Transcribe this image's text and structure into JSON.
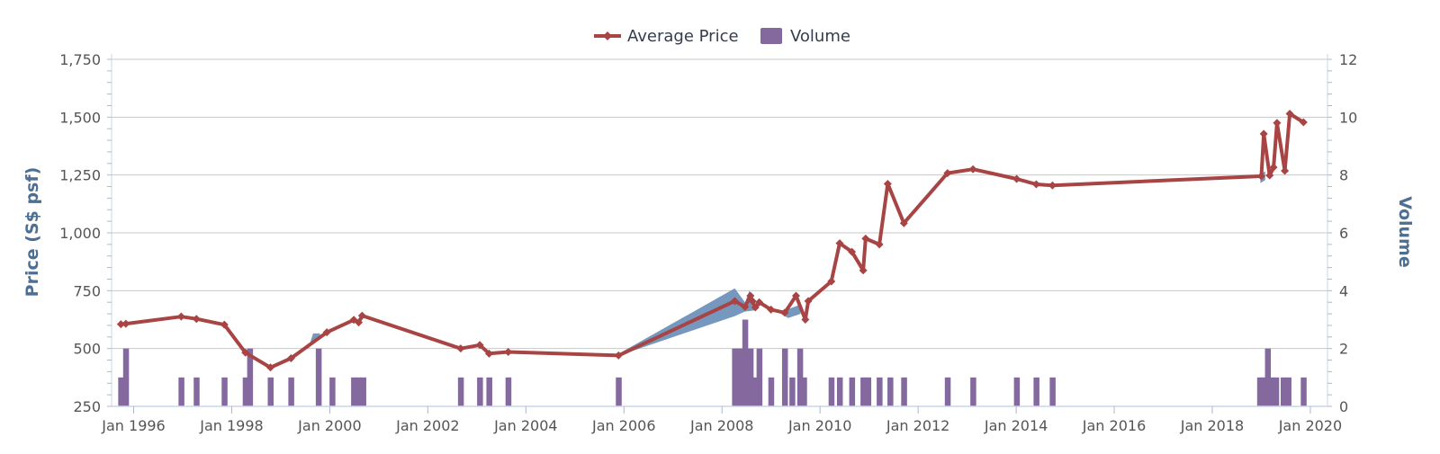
{
  "chart_data": {
    "type": "line",
    "legend": {
      "placement": "top-center",
      "items": [
        {
          "label": "Average Price",
          "color": "#a84444",
          "kind": "line"
        },
        {
          "label": "Volume",
          "color": "#84699e",
          "kind": "bar"
        }
      ]
    },
    "y_left": {
      "label": "Price (S$ psf)",
      "min": 250,
      "max": 1750,
      "ticks": [
        "250",
        "500",
        "750",
        "1,000",
        "1,250",
        "1,500",
        "1,750"
      ]
    },
    "y_right": {
      "label": "Volume",
      "min": 0,
      "max": 12,
      "ticks": [
        "0",
        "2",
        "4",
        "6",
        "8",
        "10",
        "12"
      ]
    },
    "x_axis": {
      "min": 1995.55,
      "max": 2020.35,
      "ticks": [
        {
          "label": "Jan 1996",
          "value": 1996
        },
        {
          "label": "Jan 1998",
          "value": 1998
        },
        {
          "label": "Jan 2000",
          "value": 2000
        },
        {
          "label": "Jan 2002",
          "value": 2002
        },
        {
          "label": "Jan 2004",
          "value": 2004
        },
        {
          "label": "Jan 2006",
          "value": 2006
        },
        {
          "label": "Jan 2008",
          "value": 2008
        },
        {
          "label": "Jan 2010",
          "value": 2010
        },
        {
          "label": "Jan 2012",
          "value": 2012
        },
        {
          "label": "Jan 2014",
          "value": 2014
        },
        {
          "label": "Jan 2016",
          "value": 2016
        },
        {
          "label": "Jan 2018",
          "value": 2018
        },
        {
          "label": "Jan 2020",
          "value": 2020
        }
      ]
    },
    "grid": true,
    "series": [
      {
        "name": "Average Price",
        "color": "#a84444",
        "points": [
          [
            1995.74,
            605
          ],
          [
            1995.84,
            607
          ],
          [
            1996.97,
            638
          ],
          [
            1997.28,
            628
          ],
          [
            1997.85,
            603
          ],
          [
            1998.28,
            482
          ],
          [
            1998.79,
            418
          ],
          [
            1999.21,
            458
          ],
          [
            1999.94,
            570
          ],
          [
            2000.49,
            624
          ],
          [
            2000.59,
            613
          ],
          [
            2000.66,
            642
          ],
          [
            2002.67,
            500
          ],
          [
            2003.06,
            515
          ],
          [
            2003.25,
            478
          ],
          [
            2003.64,
            485
          ],
          [
            2005.89,
            470
          ],
          [
            2008.26,
            705
          ],
          [
            2008.47,
            680
          ],
          [
            2008.58,
            728
          ],
          [
            2008.62,
            705
          ],
          [
            2008.68,
            678
          ],
          [
            2008.76,
            700
          ],
          [
            2009.0,
            668
          ],
          [
            2009.28,
            655
          ],
          [
            2009.51,
            728
          ],
          [
            2009.7,
            625
          ],
          [
            2009.76,
            705
          ],
          [
            2010.23,
            790
          ],
          [
            2010.4,
            955
          ],
          [
            2010.65,
            918
          ],
          [
            2010.88,
            838
          ],
          [
            2010.93,
            975
          ],
          [
            2011.21,
            950
          ],
          [
            2011.38,
            1212
          ],
          [
            2011.71,
            1042
          ],
          [
            2012.6,
            1258
          ],
          [
            2013.12,
            1275
          ],
          [
            2014.01,
            1233
          ],
          [
            2014.41,
            1210
          ],
          [
            2014.74,
            1205
          ],
          [
            2019.0,
            1245
          ],
          [
            2019.05,
            1428
          ],
          [
            2019.17,
            1248
          ],
          [
            2019.25,
            1283
          ],
          [
            2019.32,
            1475
          ],
          [
            2019.48,
            1268
          ],
          [
            2019.58,
            1515
          ],
          [
            2019.86,
            1478
          ]
        ]
      },
      {
        "name": "Volume",
        "color": "#84699e",
        "bars": [
          [
            1995.74,
            1
          ],
          [
            1995.84,
            2
          ],
          [
            1996.97,
            1
          ],
          [
            1997.28,
            1
          ],
          [
            1997.85,
            1
          ],
          [
            1998.28,
            1
          ],
          [
            1998.37,
            2
          ],
          [
            1998.79,
            1
          ],
          [
            1999.21,
            1
          ],
          [
            1999.77,
            2
          ],
          [
            2000.05,
            1
          ],
          [
            2000.49,
            1
          ],
          [
            2000.59,
            1
          ],
          [
            2000.68,
            1
          ],
          [
            2002.67,
            1
          ],
          [
            2003.06,
            1
          ],
          [
            2003.25,
            1
          ],
          [
            2003.64,
            1
          ],
          [
            2005.89,
            1
          ],
          [
            2008.26,
            2
          ],
          [
            2008.36,
            2
          ],
          [
            2008.47,
            3
          ],
          [
            2008.58,
            2
          ],
          [
            2008.68,
            1
          ],
          [
            2008.76,
            2
          ],
          [
            2009.0,
            1
          ],
          [
            2009.28,
            2
          ],
          [
            2009.43,
            1
          ],
          [
            2009.59,
            2
          ],
          [
            2009.67,
            1
          ],
          [
            2010.23,
            1
          ],
          [
            2010.4,
            1
          ],
          [
            2010.65,
            1
          ],
          [
            2010.88,
            1
          ],
          [
            2010.98,
            1
          ],
          [
            2011.21,
            1
          ],
          [
            2011.43,
            1
          ],
          [
            2011.71,
            1
          ],
          [
            2012.6,
            1
          ],
          [
            2013.12,
            1
          ],
          [
            2014.01,
            1
          ],
          [
            2014.41,
            1
          ],
          [
            2014.74,
            1
          ],
          [
            2018.97,
            1
          ],
          [
            2019.05,
            1
          ],
          [
            2019.13,
            2
          ],
          [
            2019.2,
            1
          ],
          [
            2019.3,
            1
          ],
          [
            2019.45,
            1
          ],
          [
            2019.55,
            1
          ],
          [
            2019.86,
            1
          ]
        ]
      }
    ],
    "range_band": {
      "color": "#6f92ba",
      "upper": [
        [
          1999.56,
          498
        ],
        [
          1999.66,
          565
        ],
        [
          1999.8,
          565
        ],
        [
          2005.9,
          478
        ],
        [
          2008.26,
          760
        ],
        [
          2008.47,
          700
        ],
        [
          2008.56,
          750
        ],
        [
          2008.66,
          692
        ],
        [
          2009.2,
          658
        ],
        [
          2009.35,
          670
        ],
        [
          2009.6,
          690
        ],
        [
          2018.98,
          1255
        ],
        [
          2019.08,
          1265
        ]
      ],
      "lower": [
        [
          1999.56,
          498
        ],
        [
          1999.66,
          530
        ],
        [
          1999.8,
          548
        ],
        [
          2005.9,
          470
        ],
        [
          2008.26,
          640
        ],
        [
          2008.47,
          660
        ],
        [
          2008.56,
          662
        ],
        [
          2008.66,
          665
        ],
        [
          2009.2,
          650
        ],
        [
          2009.35,
          632
        ],
        [
          2009.6,
          650
        ],
        [
          2018.98,
          1215
        ],
        [
          2019.08,
          1228
        ]
      ],
      "segments": [
        [
          0,
          3
        ],
        [
          3,
          8
        ],
        [
          8,
          11
        ],
        [
          11,
          13
        ]
      ]
    }
  }
}
